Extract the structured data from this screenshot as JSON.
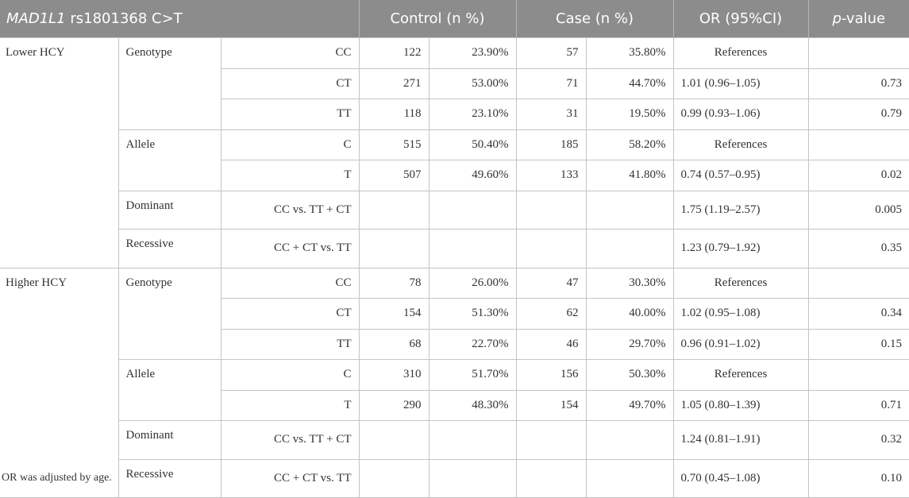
{
  "header": {
    "gene": "MAD1L1",
    "snp": " rs1801368 C>T",
    "control": "Control (n %)",
    "case": "Case (n %)",
    "or": "OR (95%CI)",
    "p_italic": "p",
    "p_rest": "-value"
  },
  "groups": [
    {
      "label": "Lower HCY",
      "rows": [
        {
          "model": "Genotype",
          "genotype": "CC",
          "ctrl_n": "122",
          "ctrl_pct": "23.90%",
          "case_n": "57",
          "case_pct": "35.80%",
          "or": "References",
          "p": ""
        },
        {
          "model": "",
          "genotype": "CT",
          "ctrl_n": "271",
          "ctrl_pct": "53.00%",
          "case_n": "71",
          "case_pct": "44.70%",
          "or": "1.01 (0.96–1.05)",
          "p": "0.73"
        },
        {
          "model": "",
          "genotype": "TT",
          "ctrl_n": "118",
          "ctrl_pct": "23.10%",
          "case_n": "31",
          "case_pct": "19.50%",
          "or": "0.99 (0.93–1.06)",
          "p": "0.79"
        },
        {
          "model": "Allele",
          "genotype": "C",
          "ctrl_n": "515",
          "ctrl_pct": "50.40%",
          "case_n": "185",
          "case_pct": "58.20%",
          "or": "References",
          "p": ""
        },
        {
          "model": "",
          "genotype": "T",
          "ctrl_n": "507",
          "ctrl_pct": "49.60%",
          "case_n": "133",
          "case_pct": "41.80%",
          "or": "0.74 (0.57–0.95)",
          "p": "0.02"
        },
        {
          "model": "Dominant",
          "genotype": "CC vs. TT + CT",
          "ctrl_n": "",
          "ctrl_pct": "",
          "case_n": "",
          "case_pct": "",
          "or": "1.75 (1.19–2.57)",
          "p": "0.005"
        },
        {
          "model": "Recessive",
          "genotype": "CC + CT vs. TT",
          "ctrl_n": "",
          "ctrl_pct": "",
          "case_n": "",
          "case_pct": "",
          "or": "1.23 (0.79–1.92)",
          "p": "0.35"
        }
      ]
    },
    {
      "label": "Higher HCY",
      "rows": [
        {
          "model": "Genotype",
          "genotype": "CC",
          "ctrl_n": "78",
          "ctrl_pct": "26.00%",
          "case_n": "47",
          "case_pct": "30.30%",
          "or": "References",
          "p": ""
        },
        {
          "model": "",
          "genotype": "CT",
          "ctrl_n": "154",
          "ctrl_pct": "51.30%",
          "case_n": "62",
          "case_pct": "40.00%",
          "or": "1.02 (0.95–1.08)",
          "p": "0.34"
        },
        {
          "model": "",
          "genotype": "TT",
          "ctrl_n": "68",
          "ctrl_pct": "22.70%",
          "case_n": "46",
          "case_pct": "29.70%",
          "or": "0.96 (0.91–1.02)",
          "p": "0.15"
        },
        {
          "model": "Allele",
          "genotype": "C",
          "ctrl_n": "310",
          "ctrl_pct": "51.70%",
          "case_n": "156",
          "case_pct": "50.30%",
          "or": "References",
          "p": ""
        },
        {
          "model": "",
          "genotype": "T",
          "ctrl_n": "290",
          "ctrl_pct": "48.30%",
          "case_n": "154",
          "case_pct": "49.70%",
          "or": "1.05 (0.80–1.39)",
          "p": "0.71"
        },
        {
          "model": "Dominant",
          "genotype": "CC vs. TT + CT",
          "ctrl_n": "",
          "ctrl_pct": "",
          "case_n": "",
          "case_pct": "",
          "or": "1.24 (0.81–1.91)",
          "p": "0.32"
        },
        {
          "model": "Recessive",
          "genotype": "CC + CT vs. TT",
          "ctrl_n": "",
          "ctrl_pct": "",
          "case_n": "",
          "case_pct": "",
          "or": "0.70 (0.45–1.08)",
          "p": "0.10"
        }
      ]
    }
  ],
  "footnote": "OR was adjusted by age.",
  "colors": {
    "header_bg": "#8c8c8c",
    "header_text": "#ffffff",
    "border": "#c4c4c4"
  }
}
